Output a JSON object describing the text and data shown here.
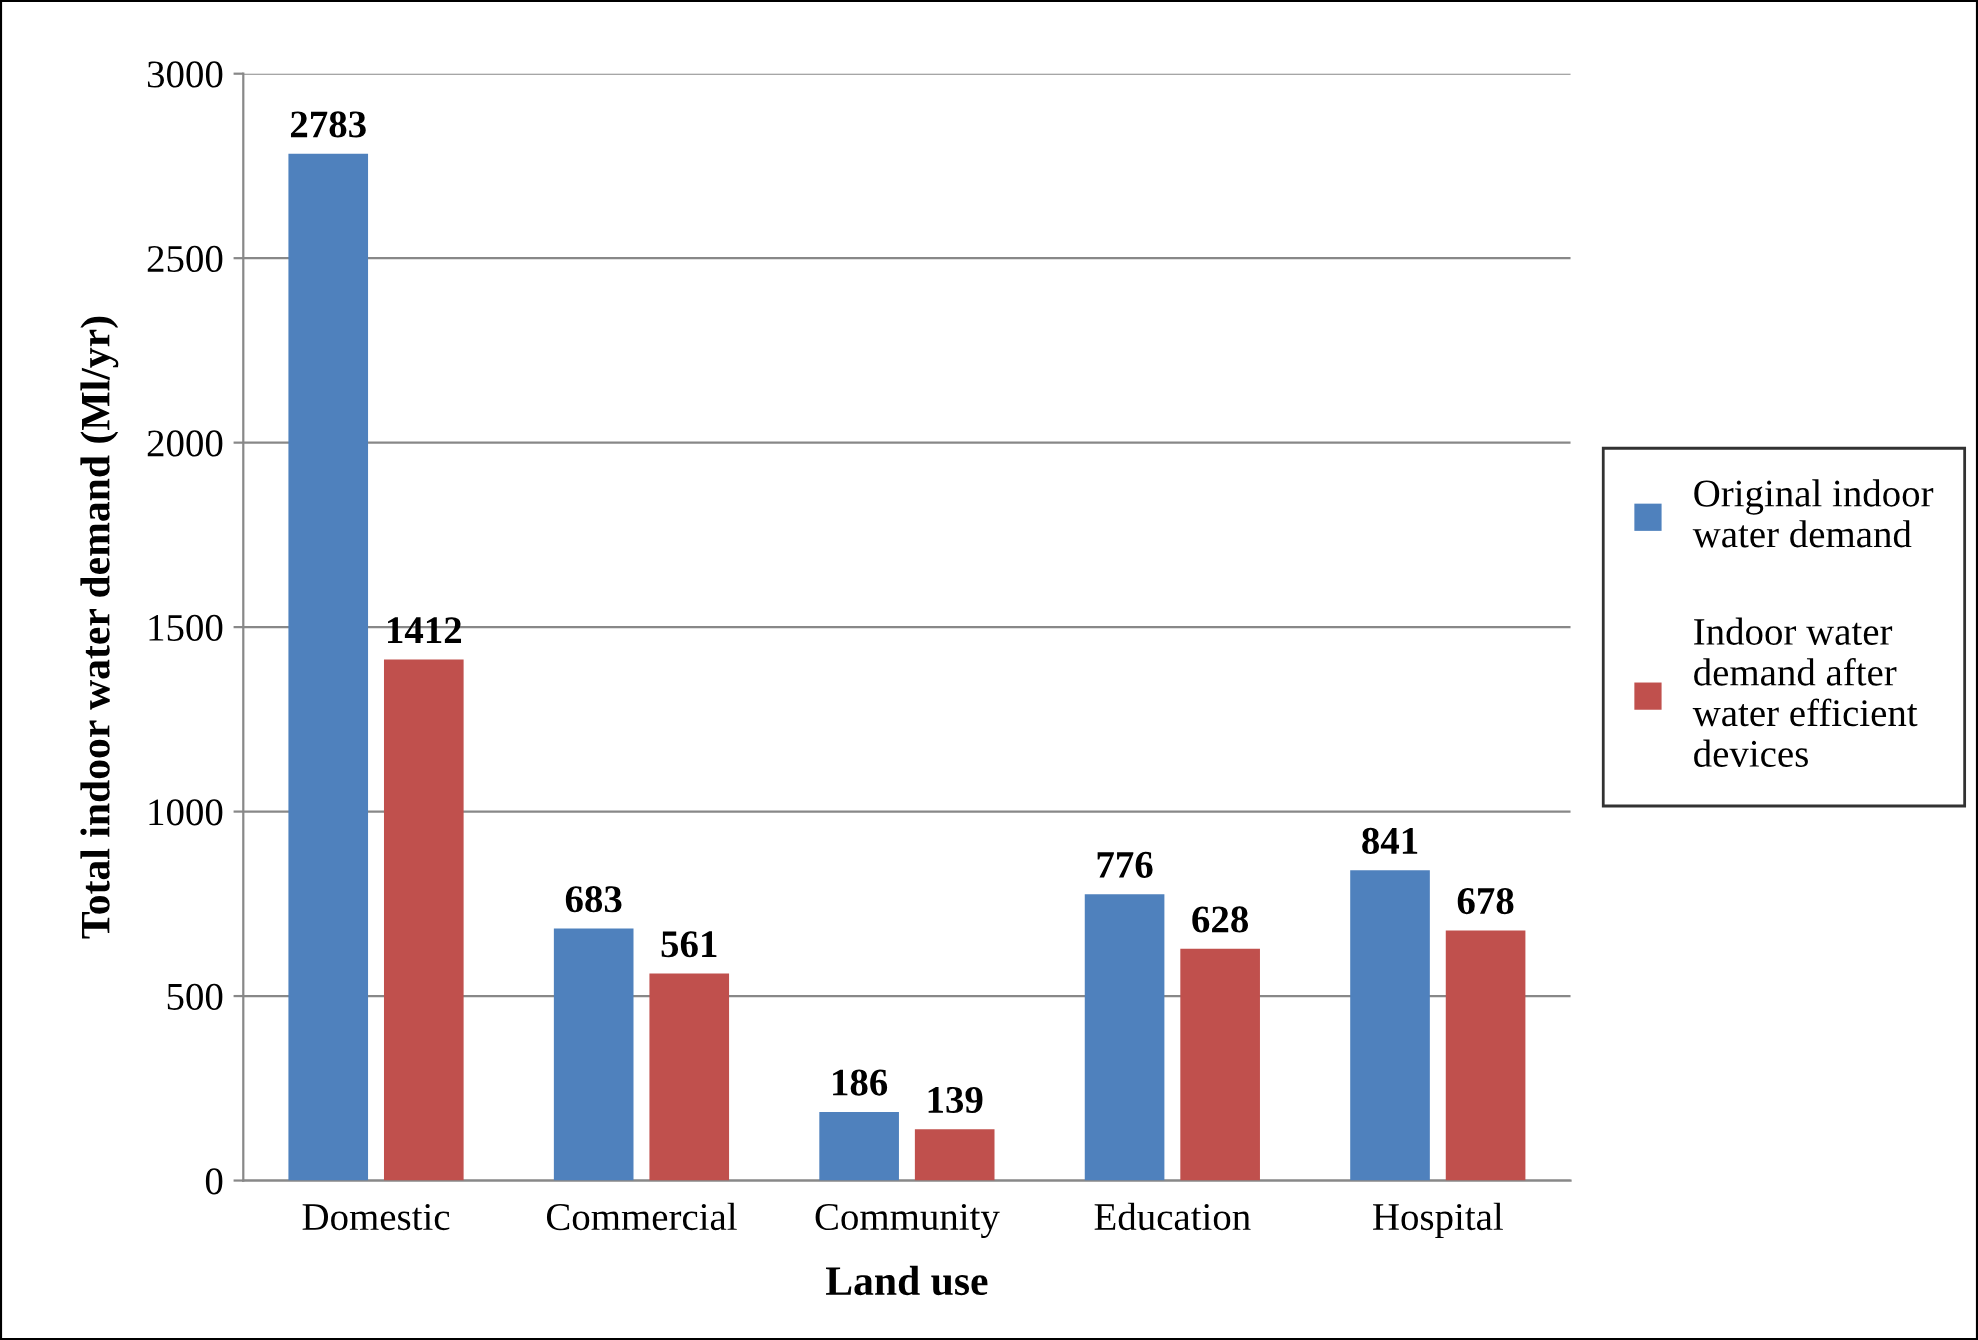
{
  "chart_data": {
    "type": "bar",
    "xlabel": "Land use",
    "ylabel": "Total indoor water demand (Ml/yr)",
    "categories": [
      "Domestic",
      "Commercial",
      "Community",
      "Education",
      "Hospital"
    ],
    "series": [
      {
        "name": "Original indoor\nwater demand",
        "color": "#4f81bd",
        "values": [
          2783,
          683,
          186,
          776,
          841
        ]
      },
      {
        "name": "Indoor water\ndemand after\nwater efficient\ndevices",
        "color": "#c0504d",
        "values": [
          1412,
          561,
          139,
          628,
          678
        ]
      }
    ],
    "ylim": [
      0,
      3000
    ],
    "yticks": [
      0,
      500,
      1000,
      1500,
      2000,
      2500,
      3000
    ],
    "grid": "y",
    "legend": "right",
    "data_labels": true
  }
}
